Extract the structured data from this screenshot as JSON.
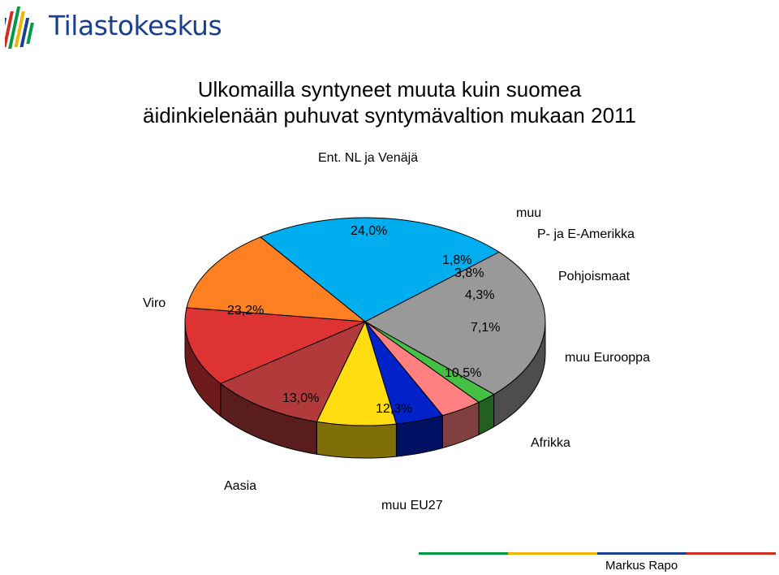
{
  "header": {
    "logo_text": "Tilastokeskus"
  },
  "title_line1": "Ulkomailla syntyneet muuta kuin suomea",
  "title_line2": "äidinkielenään puhuvat syntymävaltion mukaan 2011",
  "author": "Markus Rapo",
  "brand_colors": [
    "#009a44",
    "#f0b400",
    "#1b3f8f",
    "#d52b1e"
  ],
  "chart_data": {
    "type": "pie",
    "title": "Ulkomailla syntyneet muuta kuin suomea äidinkielenään puhuvat syntymävaltion mukaan 2011",
    "slices": [
      {
        "name": "Ent. NL ja Venäjä",
        "value": 24.0,
        "value_label": "24,0%",
        "color": "#999999"
      },
      {
        "name": "muu",
        "value": 1.8,
        "value_label": "1,8%",
        "color": "#44c044"
      },
      {
        "name": "P- ja E-Amerikka",
        "value": 3.8,
        "value_label": "3,8%",
        "color": "#ff8080"
      },
      {
        "name": "Pohjoismaat",
        "value": 4.3,
        "value_label": "4,3%",
        "color": "#0022c8"
      },
      {
        "name": "muu Eurooppa",
        "value": 7.1,
        "value_label": "7,1%",
        "color": "#ffdd11"
      },
      {
        "name": "Afrikka",
        "value": 10.5,
        "value_label": "10,5%",
        "color": "#b23a3a"
      },
      {
        "name": "muu EU27",
        "value": 12.3,
        "value_label": "12,3%",
        "color": "#dd3333"
      },
      {
        "name": "Aasia",
        "value": 13.0,
        "value_label": "13,0%",
        "color": "#ff8022"
      },
      {
        "name": "Viro",
        "value": 23.2,
        "value_label": "23,2%",
        "color": "#00aeef"
      }
    ]
  }
}
